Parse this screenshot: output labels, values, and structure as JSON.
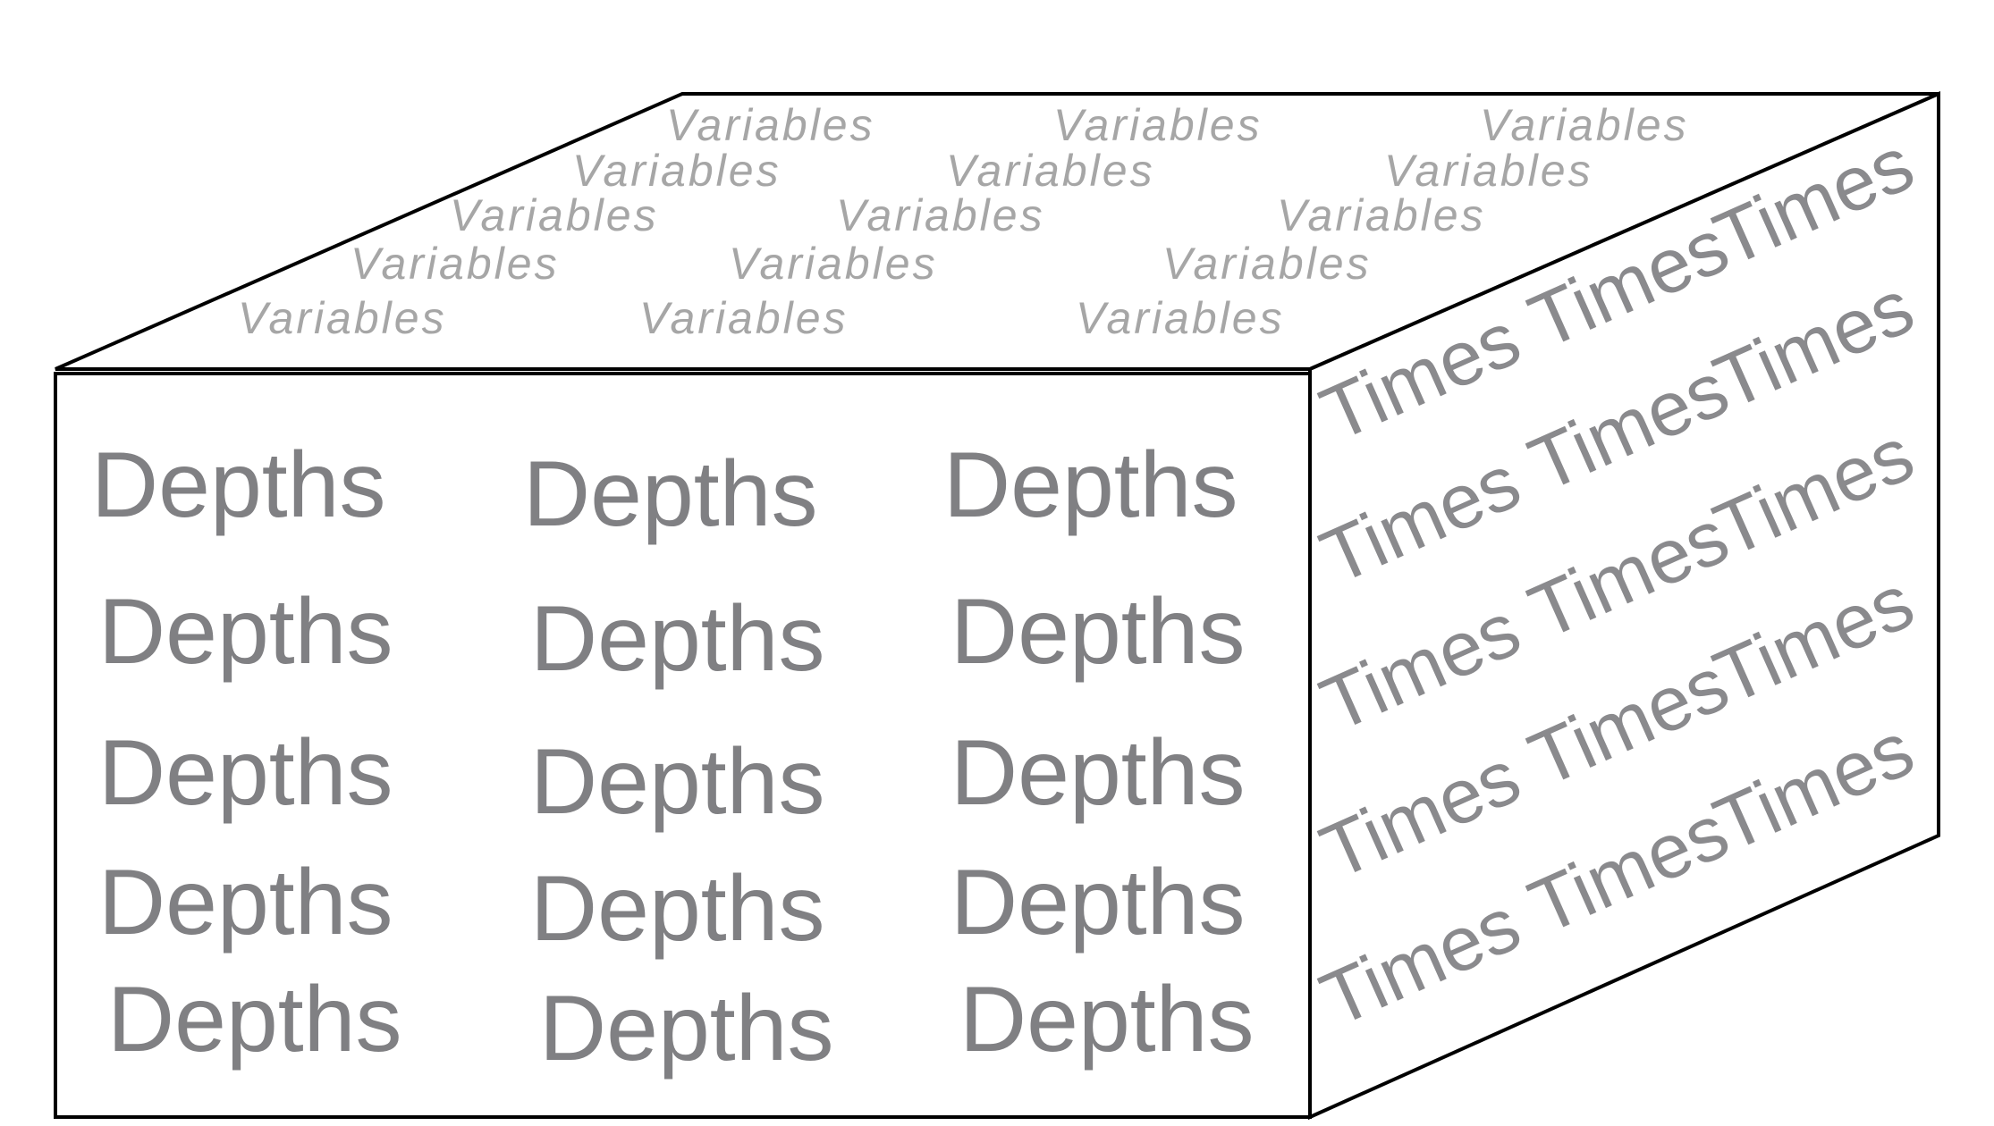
{
  "cube": {
    "front_face": {
      "label": "Depths",
      "rows": 5,
      "cols": 3
    },
    "top_face": {
      "label": "Variables",
      "rows": 5,
      "cols": 3
    },
    "side_face": {
      "label": "Times",
      "rows": 5,
      "cols": 3
    }
  },
  "colors": {
    "outline": "#000000",
    "depths_text": "#808083",
    "variables_text": "#a6a6a6",
    "times_text": "#8a8a8d",
    "background": "#ffffff"
  }
}
